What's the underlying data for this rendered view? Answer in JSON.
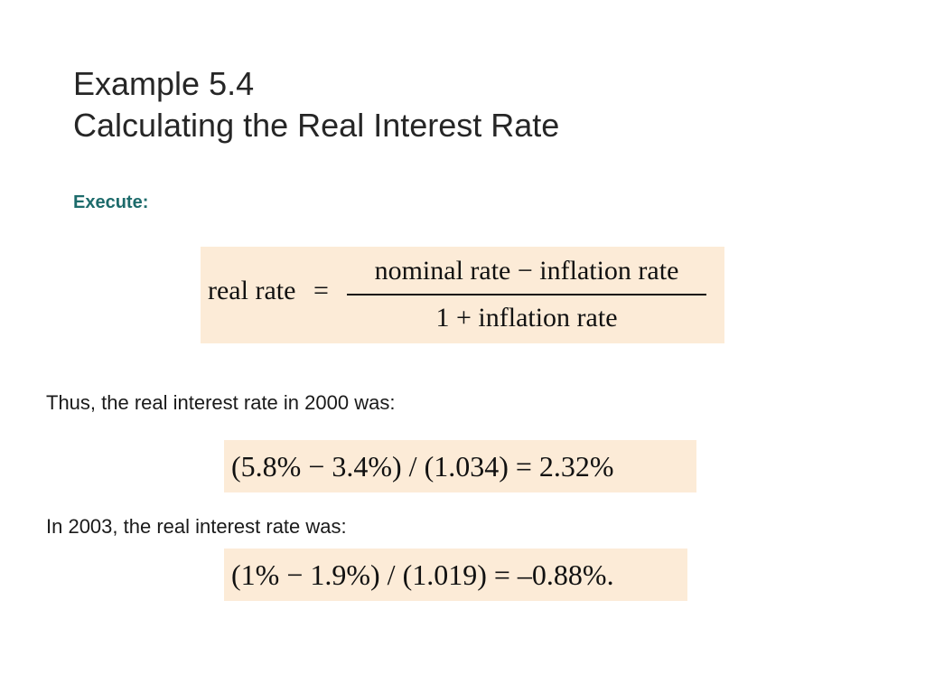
{
  "slide": {
    "title_line1": "Example 5.4",
    "title_line2": "Calculating the Real Interest Rate",
    "execute_label": "Execute:",
    "formula": {
      "lhs": "real rate",
      "equals": "=",
      "numerator": "nominal rate − inflation rate",
      "denominator": "1 + inflation rate"
    },
    "text_2000": "Thus, the real interest rate in 2000 was:",
    "calc_2000": "(5.8% − 3.4%) / (1.034) = 2.32%",
    "text_2003": "In 2003, the real interest rate was:",
    "calc_2003": "(1% − 1.9%) / (1.019) = –0.88%."
  },
  "colors": {
    "formula_background": "#fcebd7",
    "execute_text": "#1d6b6b"
  }
}
